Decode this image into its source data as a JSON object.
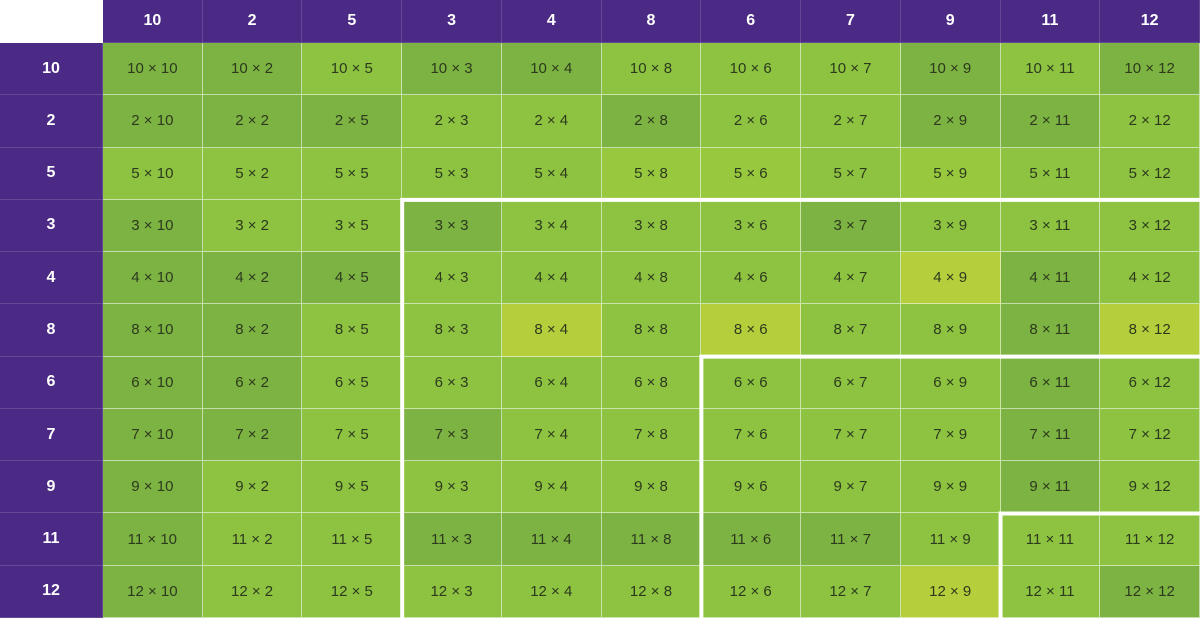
{
  "columns": [
    "10",
    "2",
    "5",
    "3",
    "4",
    "8",
    "6",
    "7",
    "9",
    "11",
    "12"
  ],
  "rows": [
    {
      "label": "10",
      "cells": [
        "10 × 10",
        "10 × 2",
        "10 × 5",
        "10 × 3",
        "10 × 4",
        "10 × 8",
        "10 × 6",
        "10 × 7",
        "10 × 9",
        "10 × 11",
        "10 × 12"
      ]
    },
    {
      "label": "2",
      "cells": [
        "2 × 10",
        "2 × 2",
        "2 × 5",
        "2 × 3",
        "2 × 4",
        "2 × 8",
        "2 × 6",
        "2 × 7",
        "2 × 9",
        "2 × 11",
        "2 × 12"
      ]
    },
    {
      "label": "5",
      "cells": [
        "5 × 10",
        "5 × 2",
        "5 × 5",
        "5 × 3",
        "5 × 4",
        "5 × 8",
        "5 × 6",
        "5 × 7",
        "5 × 9",
        "5 × 11",
        "5 × 12"
      ]
    },
    {
      "label": "3",
      "cells": [
        "3 × 10",
        "3 × 2",
        "3 × 5",
        "3 × 3",
        "3 × 4",
        "3 × 8",
        "3 × 6",
        "3 × 7",
        "3 × 9",
        "3 × 11",
        "3 × 12"
      ]
    },
    {
      "label": "4",
      "cells": [
        "4 × 10",
        "4 × 2",
        "4 × 5",
        "4 × 3",
        "4 × 4",
        "4 × 8",
        "4 × 6",
        "4 × 7",
        "4 × 9",
        "4 × 11",
        "4 × 12"
      ]
    },
    {
      "label": "8",
      "cells": [
        "8 × 10",
        "8 × 2",
        "8 × 5",
        "8 × 3",
        "8 × 4",
        "8 × 8",
        "8 × 6",
        "8 × 7",
        "8 × 9",
        "8 × 11",
        "8 × 12"
      ]
    },
    {
      "label": "6",
      "cells": [
        "6 × 10",
        "6 × 2",
        "6 × 5",
        "6 × 3",
        "6 × 4",
        "6 × 8",
        "6 × 6",
        "6 × 7",
        "6 × 9",
        "6 × 11",
        "6 × 12"
      ]
    },
    {
      "label": "7",
      "cells": [
        "7 × 10",
        "7 × 2",
        "7 × 5",
        "7 × 3",
        "7 × 4",
        "7 × 8",
        "7 × 6",
        "7 × 7",
        "7 × 9",
        "7 × 11",
        "7 × 12"
      ]
    },
    {
      "label": "9",
      "cells": [
        "9 × 10",
        "9 × 2",
        "9 × 5",
        "9 × 3",
        "9 × 4",
        "9 × 8",
        "9 × 6",
        "9 × 7",
        "9 × 9",
        "9 × 11",
        "9 × 12"
      ]
    },
    {
      "label": "11",
      "cells": [
        "11 × 10",
        "11 × 2",
        "11 × 5",
        "11 × 3",
        "11 × 4",
        "11 × 8",
        "11 × 6",
        "11 × 7",
        "11 × 9",
        "11 × 11",
        "11 × 12"
      ]
    },
    {
      "label": "12",
      "cells": [
        "12 × 10",
        "12 × 2",
        "12 × 5",
        "12 × 3",
        "12 × 4",
        "12 × 8",
        "12 × 6",
        "12 × 7",
        "12 × 9",
        "12 × 11",
        "12 × 12"
      ]
    }
  ]
}
